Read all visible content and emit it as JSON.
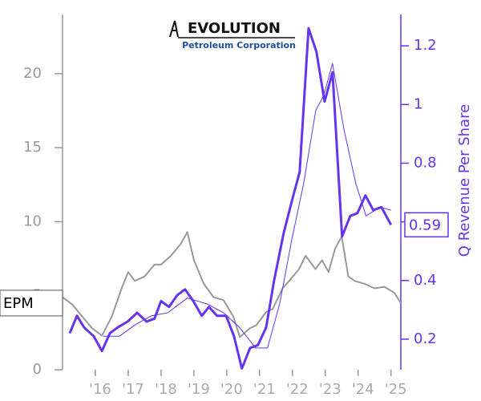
{
  "chart_data": {
    "type": "line",
    "logo": {
      "title": "EVOLUTION",
      "subtitle": "Petroleum Corporation"
    },
    "y2_label": "Q Revenue Per Share",
    "xlim": [
      2015,
      2025.3
    ],
    "xticks": [
      {
        "value": 2016,
        "label": "'16"
      },
      {
        "value": 2017,
        "label": "'17"
      },
      {
        "value": 2018,
        "label": "'18"
      },
      {
        "value": 2019,
        "label": "'19"
      },
      {
        "value": 2020,
        "label": "'20"
      },
      {
        "value": 2021,
        "label": "'21"
      },
      {
        "value": 2022,
        "label": "'22"
      },
      {
        "value": 2023,
        "label": "'23"
      },
      {
        "value": 2024,
        "label": "'24"
      },
      {
        "value": 2025,
        "label": "'25"
      }
    ],
    "ylim": [
      0,
      24
    ],
    "yticks": [
      0,
      5,
      10,
      15,
      20
    ],
    "y2lim": [
      0.096,
      1.307
    ],
    "y2ticks": [
      0.2,
      0.4,
      0.6,
      0.8,
      1.0,
      1.2
    ],
    "series": [
      {
        "name": "EPM",
        "color": "#999999",
        "width": 2,
        "x": [
          2015.0,
          2015.3,
          2015.6,
          2015.9,
          2016.2,
          2016.5,
          2016.8,
          2017.0,
          2017.2,
          2017.5,
          2017.8,
          2018.0,
          2018.3,
          2018.6,
          2018.8,
          2019.0,
          2019.3,
          2019.6,
          2019.9,
          2020.2,
          2020.4,
          2020.7,
          2020.9,
          2021.2,
          2021.4,
          2021.7,
          2021.9,
          2022.2,
          2022.4,
          2022.7,
          2022.9,
          2023.1,
          2023.3,
          2023.5,
          2023.7,
          2023.9,
          2024.2,
          2024.5,
          2024.8,
          2025.1,
          2025.3
        ],
        "values": [
          4.9,
          4.4,
          3.6,
          2.8,
          2.3,
          3.6,
          5.5,
          6.6,
          6.0,
          6.3,
          7.1,
          7.1,
          7.7,
          8.5,
          9.3,
          7.4,
          5.8,
          4.9,
          4.7,
          3.6,
          2.2,
          2.8,
          3.0,
          3.9,
          4.1,
          5.5,
          6.0,
          6.8,
          7.7,
          6.8,
          7.4,
          6.6,
          8.2,
          9.0,
          6.3,
          6.0,
          5.8,
          5.5,
          5.6,
          5.2,
          4.5
        ]
      },
      {
        "name": "Q Revenue Per Share",
        "color": "#6633ee",
        "width": 3,
        "axis": "y2",
        "x": [
          2015.22,
          2015.44,
          2015.66,
          2015.95,
          2016.2,
          2016.44,
          2016.68,
          2016.98,
          2017.27,
          2017.56,
          2017.8,
          2018.0,
          2018.24,
          2018.49,
          2018.73,
          2018.98,
          2019.24,
          2019.46,
          2019.7,
          2019.98,
          2020.22,
          2020.46,
          2020.71,
          2020.95,
          2021.2,
          2021.44,
          2021.73,
          2021.98,
          2022.22,
          2022.49,
          2022.73,
          2022.98,
          2023.22,
          2023.51,
          2023.76,
          2023.98,
          2024.22,
          2024.46,
          2024.71,
          2025.0
        ],
        "values": [
          0.22,
          0.28,
          0.24,
          0.21,
          0.16,
          0.22,
          0.24,
          0.26,
          0.29,
          0.26,
          0.27,
          0.33,
          0.31,
          0.35,
          0.37,
          0.33,
          0.28,
          0.31,
          0.28,
          0.28,
          0.21,
          0.1,
          0.17,
          0.18,
          0.24,
          0.4,
          0.56,
          0.67,
          0.77,
          1.26,
          1.18,
          1.01,
          1.11,
          0.55,
          0.62,
          0.63,
          0.69,
          0.64,
          0.65,
          0.59
        ]
      },
      {
        "color": "#6633ee",
        "width": 1,
        "axis": "y2",
        "x": [
          2016.24,
          2016.73,
          2017.22,
          2017.71,
          2018.2,
          2018.8,
          2019.41,
          2019.9,
          2020.39,
          2020.88,
          2021.24,
          2021.61,
          2021.98,
          2022.34,
          2022.71,
          2022.95,
          2023.22,
          2023.56,
          2023.93,
          2024.24,
          2024.66,
          2025.0
        ],
        "values": [
          0.21,
          0.21,
          0.25,
          0.28,
          0.29,
          0.34,
          0.32,
          0.29,
          0.24,
          0.17,
          0.17,
          0.32,
          0.54,
          0.73,
          0.98,
          1.03,
          1.14,
          0.92,
          0.73,
          0.62,
          0.65,
          0.64
        ]
      }
    ]
  }
}
